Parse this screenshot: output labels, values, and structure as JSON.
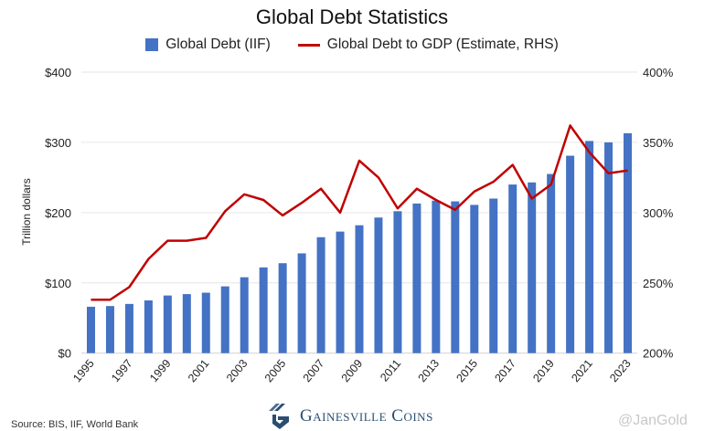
{
  "chart_data": {
    "type": "bar+line",
    "title": "Global Debt Statistics",
    "ylabel": "Trillion dollars",
    "xlabel": "",
    "ylim": [
      0,
      400
    ],
    "y2lim": [
      200,
      400
    ],
    "yticks": [
      "$0",
      "$100",
      "$200",
      "$300",
      "$400"
    ],
    "y2ticks": [
      "200%",
      "250%",
      "300%",
      "350%",
      "400%"
    ],
    "xticks": [
      "1995",
      "1997",
      "1999",
      "2001",
      "2003",
      "2005",
      "2007",
      "2009",
      "2011",
      "2013",
      "2015",
      "2017",
      "2019",
      "2021",
      "2023"
    ],
    "categories": [
      1995,
      1996,
      1997,
      1998,
      1999,
      2000,
      2001,
      2002,
      2003,
      2004,
      2005,
      2006,
      2007,
      2008,
      2009,
      2010,
      2011,
      2012,
      2013,
      2014,
      2015,
      2016,
      2017,
      2018,
      2019,
      2020,
      2021,
      2022,
      2023
    ],
    "grid": "horizontal",
    "legend_position": "top",
    "series": [
      {
        "name": "Global Debt (IIF)",
        "type": "bar",
        "axis": "left",
        "color": "#4472C4",
        "values": [
          66,
          67,
          70,
          75,
          82,
          84,
          86,
          95,
          108,
          122,
          128,
          142,
          165,
          173,
          182,
          193,
          202,
          213,
          217,
          216,
          211,
          220,
          240,
          243,
          255,
          281,
          302,
          300,
          313
        ]
      },
      {
        "name": "Global Debt to GDP (Estimate, RHS)",
        "type": "line",
        "axis": "right",
        "color": "#C00000",
        "values": [
          238,
          238,
          247,
          267,
          280,
          280,
          282,
          301,
          313,
          309,
          298,
          307,
          317,
          300,
          337,
          325,
          303,
          317,
          309,
          302,
          315,
          322,
          334,
          310,
          320,
          362,
          343,
          328,
          330
        ]
      }
    ]
  },
  "source": "Source: BIS, IIF, World Bank",
  "logo_text": "Gainesville Coins",
  "watermark": "@JanGold"
}
